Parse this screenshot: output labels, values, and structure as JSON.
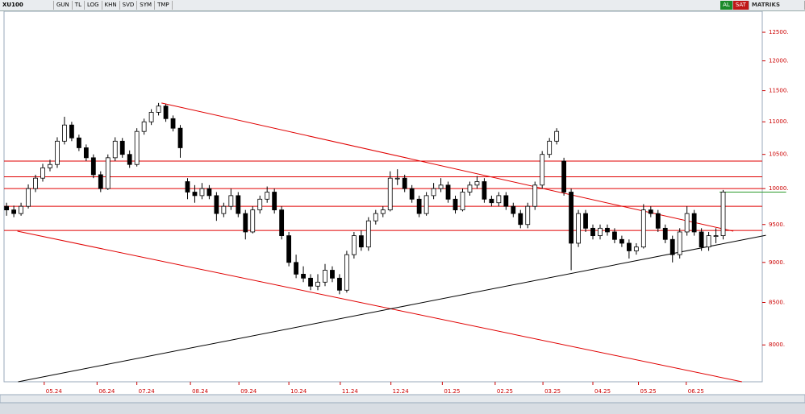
{
  "toolbar": {
    "symbol": "XU100",
    "buttons": [
      "GUN",
      "TL",
      "LOG",
      "KHN",
      "SVD",
      "SYM",
      "TMP"
    ],
    "buy": "AL",
    "sell": "SAT",
    "brand": "MATRIKS"
  },
  "chart_data": {
    "type": "candlestick",
    "log_scale": true,
    "up_color": "#ffffff",
    "down_color": "#000000",
    "wick_color": "#000000",
    "xlim": [
      -0.35,
      104.4
    ],
    "ylim": [
      7590,
      12880
    ],
    "yticks": [
      {
        "value": 8000,
        "label": "8000."
      },
      {
        "value": 8500,
        "label": "8500."
      },
      {
        "value": 9000,
        "label": "9000."
      },
      {
        "value": 9500,
        "label": "9500."
      },
      {
        "value": 10000,
        "label": "10000."
      },
      {
        "value": 10500,
        "label": "10500."
      },
      {
        "value": 11000,
        "label": "11000."
      },
      {
        "value": 11500,
        "label": "11500."
      },
      {
        "value": 12000,
        "label": "12000."
      },
      {
        "value": 12500,
        "label": "12500."
      }
    ],
    "xticks": [
      {
        "value": 5.2,
        "label": "05.24"
      },
      {
        "value": 12.5,
        "label": "06.24"
      },
      {
        "value": 18.0,
        "label": "07.24"
      },
      {
        "value": 25.4,
        "label": "08.24"
      },
      {
        "value": 32.1,
        "label": "09.24"
      },
      {
        "value": 39.0,
        "label": "10.24"
      },
      {
        "value": 46.1,
        "label": "11.24"
      },
      {
        "value": 53.1,
        "label": "12.24"
      },
      {
        "value": 60.2,
        "label": "01.25"
      },
      {
        "value": 67.5,
        "label": "02.25"
      },
      {
        "value": 74.1,
        "label": "03.25"
      },
      {
        "value": 81.0,
        "label": "04.25"
      },
      {
        "value": 87.3,
        "label": "05.25"
      },
      {
        "value": 93.9,
        "label": "06.25"
      }
    ],
    "hlines": {
      "color": "#e00000",
      "values": [
        10400,
        10170,
        10000,
        9750,
        9420
      ]
    },
    "trendlines": [
      {
        "color": "#e00000",
        "points": [
          [
            21.4,
            11300
          ],
          [
            100.4,
            9410
          ]
        ]
      },
      {
        "color": "#e00000",
        "points": [
          [
            1.5,
            9410
          ],
          [
            101.6,
            7590
          ]
        ]
      },
      {
        "color": "#000000",
        "points": [
          [
            1.6,
            7590
          ],
          [
            104.9,
            9355
          ]
        ]
      },
      {
        "color": "#2a9a2a",
        "points": [
          [
            98.5,
            9950
          ],
          [
            107.7,
            9950
          ]
        ]
      }
    ],
    "candles": [
      [
        9750,
        9800,
        9620,
        9700
      ],
      [
        9700,
        9760,
        9600,
        9650
      ],
      [
        9650,
        9800,
        9620,
        9750
      ],
      [
        9750,
        10060,
        9720,
        10000
      ],
      [
        10000,
        10200,
        9950,
        10150
      ],
      [
        10150,
        10360,
        10100,
        10300
      ],
      [
        10300,
        10420,
        10250,
        10350
      ],
      [
        10350,
        10760,
        10300,
        10700
      ],
      [
        10700,
        11080,
        10650,
        10950
      ],
      [
        10950,
        11000,
        10700,
        10750
      ],
      [
        10750,
        10800,
        10550,
        10600
      ],
      [
        10600,
        10650,
        10400,
        10450
      ],
      [
        10450,
        10500,
        10150,
        10200
      ],
      [
        10200,
        10250,
        9950,
        10000
      ],
      [
        10000,
        10500,
        9980,
        10450
      ],
      [
        10450,
        10760,
        10400,
        10700
      ],
      [
        10700,
        10750,
        10450,
        10500
      ],
      [
        10500,
        10560,
        10300,
        10350
      ],
      [
        10350,
        10900,
        10320,
        10850
      ],
      [
        10850,
        11050,
        10800,
        11000
      ],
      [
        11000,
        11200,
        10950,
        11150
      ],
      [
        11150,
        11300,
        11100,
        11250
      ],
      [
        11250,
        11280,
        11000,
        11050
      ],
      [
        11050,
        11100,
        10850,
        10900
      ],
      [
        10900,
        10950,
        10450,
        10600
      ],
      [
        10100,
        10150,
        9850,
        9950
      ],
      [
        9950,
        10050,
        9800,
        9900
      ],
      [
        9900,
        10080,
        9850,
        10000
      ],
      [
        10000,
        10050,
        9850,
        9900
      ],
      [
        9900,
        9950,
        9550,
        9650
      ],
      [
        9650,
        9800,
        9600,
        9750
      ],
      [
        9750,
        10000,
        9700,
        9900
      ],
      [
        9900,
        9950,
        9600,
        9650
      ],
      [
        9650,
        9700,
        9300,
        9400
      ],
      [
        9400,
        9750,
        9380,
        9700
      ],
      [
        9700,
        9900,
        9650,
        9850
      ],
      [
        9850,
        10030,
        9800,
        9950
      ],
      [
        9950,
        10000,
        9650,
        9700
      ],
      [
        9700,
        9750,
        9300,
        9350
      ],
      [
        9350,
        9400,
        8950,
        9000
      ],
      [
        9000,
        9100,
        8800,
        8850
      ],
      [
        8850,
        8950,
        8750,
        8800
      ],
      [
        8800,
        8850,
        8650,
        8700
      ],
      [
        8700,
        8850,
        8650,
        8750
      ],
      [
        8750,
        8980,
        8700,
        8900
      ],
      [
        8900,
        8950,
        8750,
        8800
      ],
      [
        8800,
        8850,
        8600,
        8650
      ],
      [
        8650,
        9150,
        8620,
        9100
      ],
      [
        9100,
        9400,
        9050,
        9350
      ],
      [
        9350,
        9420,
        9150,
        9200
      ],
      [
        9200,
        9600,
        9150,
        9550
      ],
      [
        9550,
        9700,
        9500,
        9650
      ],
      [
        9650,
        9750,
        9600,
        9700
      ],
      [
        9700,
        10250,
        9680,
        10150
      ],
      [
        10150,
        10280,
        10050,
        10150
      ],
      [
        10150,
        10200,
        9950,
        10000
      ],
      [
        10000,
        10050,
        9800,
        9850
      ],
      [
        9850,
        9900,
        9600,
        9650
      ],
      [
        9650,
        9950,
        9620,
        9900
      ],
      [
        9900,
        10080,
        9850,
        10000
      ],
      [
        10000,
        10150,
        9950,
        10050
      ],
      [
        10050,
        10100,
        9800,
        9850
      ],
      [
        9850,
        9900,
        9650,
        9700
      ],
      [
        9700,
        10000,
        9680,
        9950
      ],
      [
        9950,
        10100,
        9900,
        10050
      ],
      [
        10050,
        10180,
        10000,
        10100
      ],
      [
        10100,
        10150,
        9800,
        9850
      ],
      [
        9850,
        9900,
        9750,
        9800
      ],
      [
        9800,
        9950,
        9750,
        9900
      ],
      [
        9900,
        9950,
        9700,
        9750
      ],
      [
        9750,
        9800,
        9600,
        9650
      ],
      [
        9650,
        9700,
        9450,
        9500
      ],
      [
        9500,
        9800,
        9450,
        9750
      ],
      [
        9750,
        10100,
        9700,
        10050
      ],
      [
        10050,
        10550,
        10000,
        10500
      ],
      [
        10500,
        10750,
        10450,
        10700
      ],
      [
        10700,
        10900,
        10650,
        10850
      ],
      [
        10400,
        10450,
        9900,
        9950
      ],
      [
        9950,
        10000,
        8900,
        9250
      ],
      [
        9250,
        9700,
        9200,
        9650
      ],
      [
        9650,
        9700,
        9400,
        9450
      ],
      [
        9450,
        9500,
        9300,
        9350
      ],
      [
        9350,
        9500,
        9300,
        9450
      ],
      [
        9450,
        9500,
        9350,
        9400
      ],
      [
        9400,
        9450,
        9250,
        9300
      ],
      [
        9300,
        9350,
        9200,
        9250
      ],
      [
        9250,
        9300,
        9050,
        9150
      ],
      [
        9150,
        9250,
        9100,
        9200
      ],
      [
        9200,
        9780,
        9180,
        9700
      ],
      [
        9700,
        9750,
        9600,
        9650
      ],
      [
        9650,
        9700,
        9400,
        9450
      ],
      [
        9450,
        9500,
        9250,
        9300
      ],
      [
        9300,
        9350,
        9000,
        9100
      ],
      [
        9100,
        9450,
        9050,
        9400
      ],
      [
        9400,
        9750,
        9350,
        9650
      ],
      [
        9650,
        9700,
        9350,
        9400
      ],
      [
        9400,
        9450,
        9150,
        9200
      ],
      [
        9200,
        9400,
        9150,
        9350
      ],
      [
        9350,
        9450,
        9250,
        9350
      ],
      [
        9350,
        9980,
        9300,
        9950
      ]
    ]
  }
}
